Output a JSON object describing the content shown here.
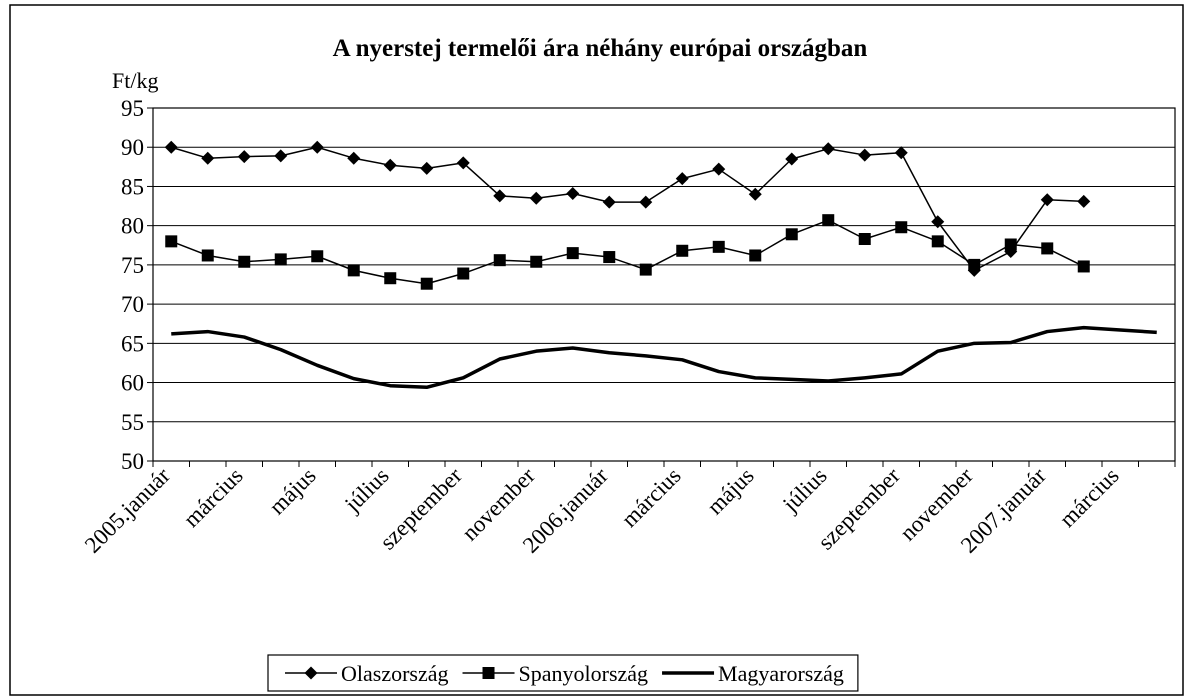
{
  "chart_data": {
    "type": "line",
    "title": "A nyerstej termelői ára néhány európai országban",
    "y_label": "Ft/kg",
    "categories": [
      "2005.január",
      null,
      "március",
      null,
      "május",
      null,
      "július",
      null,
      "szeptember",
      null,
      "november",
      null,
      "2006.január",
      null,
      "március",
      null,
      "május",
      null,
      "július",
      null,
      "szeptember",
      null,
      "november",
      null,
      "2007.január",
      null,
      "március",
      null
    ],
    "series": [
      {
        "name": "Olaszország",
        "color": "#000000",
        "marker": "diamond",
        "values": [
          90,
          88.6,
          88.8,
          88.9,
          90,
          88.6,
          87.7,
          87.3,
          88,
          83.8,
          83.5,
          84.1,
          83,
          83,
          86,
          87.2,
          84,
          88.5,
          89.8,
          89,
          89.3,
          80.5,
          74.3,
          76.7,
          83.3,
          83.1,
          null,
          null
        ]
      },
      {
        "name": "Spanyolország",
        "color": "#000000",
        "marker": "square",
        "values": [
          78,
          76.2,
          75.4,
          75.7,
          76.1,
          74.3,
          73.3,
          72.6,
          73.9,
          75.6,
          75.4,
          76.5,
          76,
          74.4,
          76.8,
          77.3,
          76.2,
          78.9,
          80.7,
          78.3,
          79.8,
          78,
          75,
          77.6,
          77.1,
          74.8,
          null,
          null
        ]
      },
      {
        "name": "Magyarország",
        "color": "#000000",
        "marker": "none",
        "values": [
          66.2,
          66.5,
          65.8,
          64.2,
          62.2,
          60.5,
          59.6,
          59.4,
          60.6,
          63,
          64,
          64.4,
          63.8,
          63.4,
          62.9,
          61.4,
          60.6,
          60.4,
          60.2,
          60.6,
          61.1,
          64,
          65,
          65.1,
          66.5,
          67,
          66.7,
          66.4
        ]
      }
    ],
    "ylim": [
      50,
      95
    ],
    "yticks": [
      50,
      55,
      60,
      65,
      70,
      75,
      80,
      85,
      90,
      95
    ],
    "grid": true,
    "legend": "bottom"
  }
}
